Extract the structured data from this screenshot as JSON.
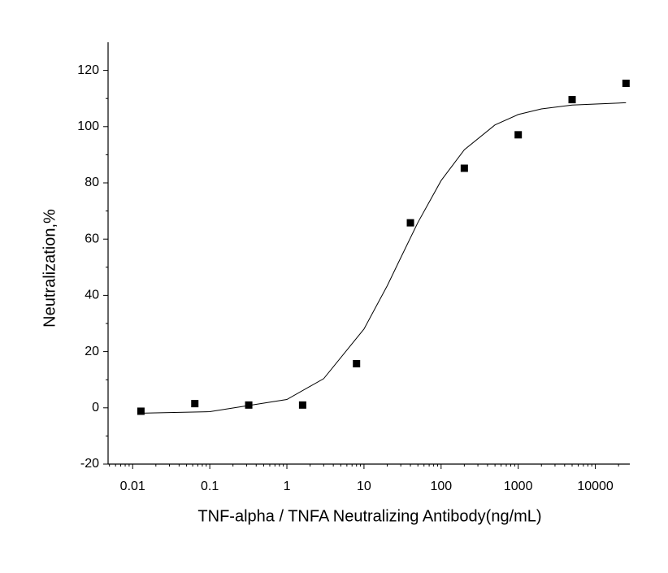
{
  "chart_data": {
    "type": "scatter",
    "x_label": "TNF-alpha / TNFA Neutralizing Antibody(ng/mL)",
    "y_label": "Neutralization,%",
    "x": [
      0.0128,
      0.064,
      0.32,
      1.6,
      8,
      40,
      200,
      1000,
      5000,
      25000
    ],
    "values": [
      -1.2,
      1.5,
      1,
      1,
      15.7,
      65.8,
      85.2,
      97.1,
      109.6,
      115.4
    ],
    "color": "#000000",
    "fit": {
      "x": [
        0.0128,
        0.1,
        1,
        3,
        10,
        20,
        30,
        50,
        100,
        200,
        500,
        1000,
        2000,
        5000,
        25000
      ],
      "values": [
        -1.9,
        -1.35,
        2.97,
        10.39,
        28.04,
        43.4,
        53.4,
        65.9,
        80.8,
        91.8,
        100.6,
        104.3,
        106.3,
        107.7,
        108.5
      ]
    },
    "xscale": "log",
    "xlim": [
      0.0048,
      28000
    ],
    "xticks": [
      0.01,
      0.1,
      1,
      10,
      100,
      1000,
      10000
    ],
    "ylim": [
      -20,
      130
    ],
    "yticks": [
      -20,
      0,
      20,
      40,
      60,
      80,
      100,
      120
    ]
  }
}
